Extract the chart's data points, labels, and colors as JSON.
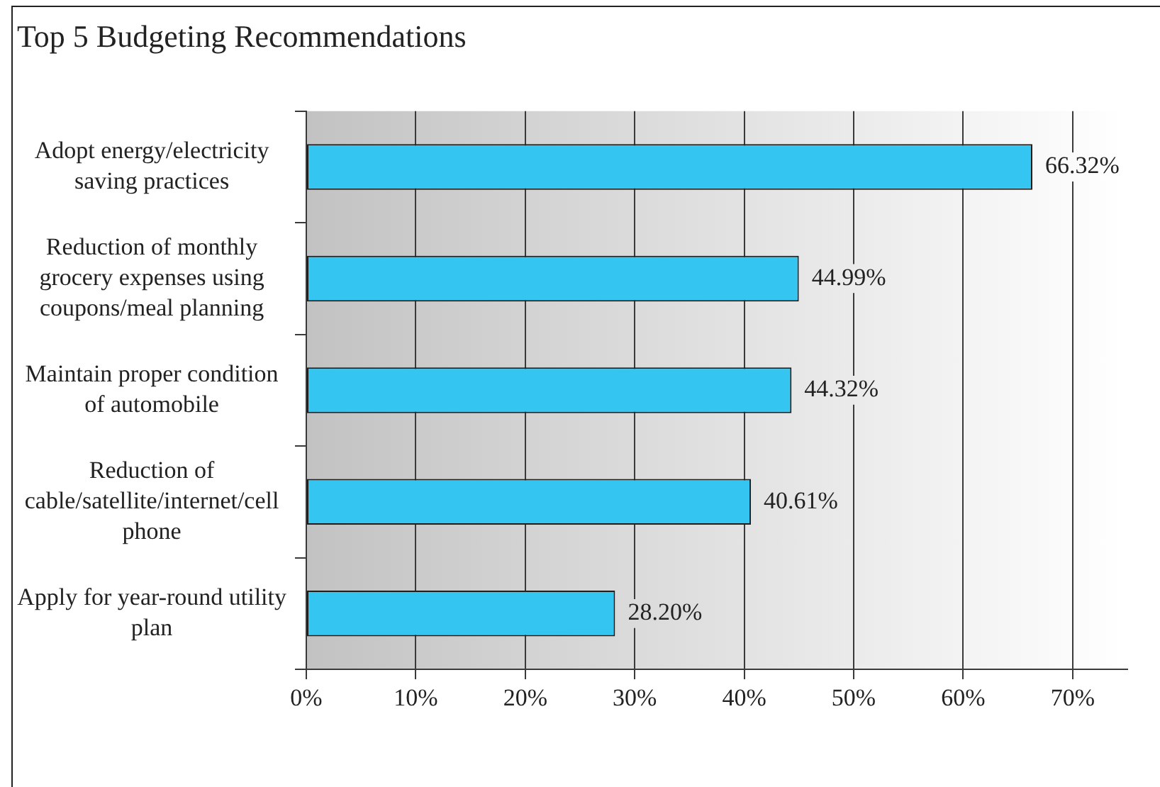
{
  "chart_data": {
    "type": "bar",
    "orientation": "horizontal",
    "title": "Top 5 Budgeting Recommendations",
    "categories": [
      "Adopt energy/electricity saving practices",
      "Reduction of monthly grocery expenses using coupons/meal planning",
      "Maintain proper condition of automobile",
      "Reduction of cable/satellite/internet/cell phone",
      "Apply for year-round utility plan"
    ],
    "values": [
      66.32,
      44.99,
      44.32,
      40.61,
      28.2
    ],
    "value_labels": [
      "66.32%",
      "44.99%",
      "44.32%",
      "40.61%",
      "28.20%"
    ],
    "color": "#35c5f1",
    "xlim": [
      0,
      75
    ],
    "xticks": [
      {
        "value": 0,
        "label": "0%"
      },
      {
        "value": 10,
        "label": "10%"
      },
      {
        "value": 20,
        "label": "20%"
      },
      {
        "value": 30,
        "label": "30%"
      },
      {
        "value": 40,
        "label": "40%"
      },
      {
        "value": 50,
        "label": "50%"
      },
      {
        "value": 60,
        "label": "60%"
      },
      {
        "value": 70,
        "label": "70%"
      }
    ],
    "grid": "x",
    "legend": false
  }
}
